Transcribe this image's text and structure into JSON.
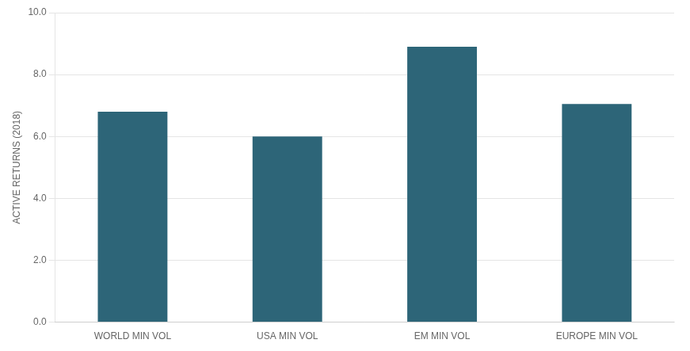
{
  "chart_data": {
    "type": "bar",
    "categories": [
      "WORLD MIN VOL",
      "USA MIN VOL",
      "EM MIN VOL",
      "EUROPE MIN VOL"
    ],
    "values": [
      6.8,
      6.0,
      8.9,
      7.05
    ],
    "color": "#2d6578",
    "ylabel": "ACTIVE RETURNS (2018)",
    "ylim": [
      0,
      10.0
    ],
    "yticks": [
      {
        "value": 0.0,
        "label": "0.0"
      },
      {
        "value": 2.0,
        "label": "2.0"
      },
      {
        "value": 4.0,
        "label": "4.0"
      },
      {
        "value": 6.0,
        "label": "6.0"
      },
      {
        "value": 8.0,
        "label": "8.0"
      },
      {
        "value": 10.0,
        "label": "10.0"
      }
    ],
    "grid": true
  }
}
